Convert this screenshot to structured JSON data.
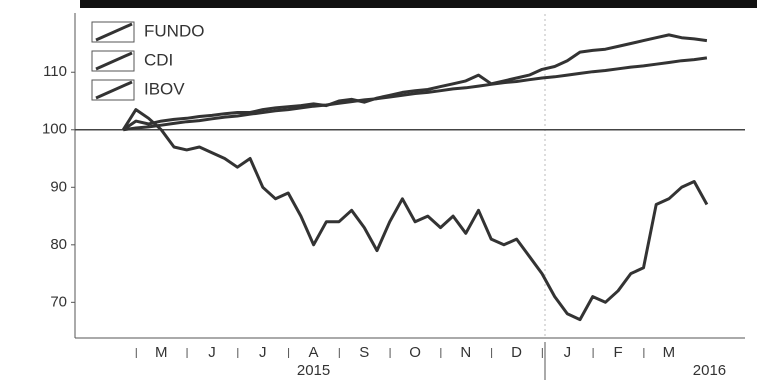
{
  "chart_data": {
    "type": "line",
    "x": [
      4.75,
      5.0,
      5.25,
      5.5,
      5.75,
      6.0,
      6.25,
      6.5,
      6.75,
      7.0,
      7.25,
      7.5,
      7.75,
      8.0,
      8.25,
      8.5,
      8.75,
      9.0,
      9.25,
      9.5,
      9.75,
      10.0,
      10.25,
      10.5,
      10.75,
      11.0,
      11.25,
      11.5,
      11.75,
      12.0,
      12.25,
      12.5,
      12.75,
      13.0,
      13.25,
      13.5,
      13.75,
      14.0,
      14.25,
      14.5,
      14.75,
      15.0,
      15.25,
      15.5,
      15.75,
      16.0,
      16.25
    ],
    "series": [
      {
        "name": "FUNDO",
        "color": "#333333",
        "values": [
          100,
          101.5,
          101,
          101.5,
          101.8,
          102,
          102.3,
          102.5,
          102.8,
          103,
          103,
          103.5,
          103.8,
          104,
          104.2,
          104.5,
          104.2,
          105,
          105.3,
          104.8,
          105.5,
          106,
          106.5,
          106.8,
          107,
          107.5,
          108,
          108.5,
          109.5,
          108,
          108.5,
          109,
          109.5,
          110.5,
          111,
          112,
          113.5,
          113.8,
          114,
          114.5,
          115,
          115.5,
          116,
          116.5,
          116,
          115.8,
          115.5
        ]
      },
      {
        "name": "CDI",
        "color": "#333333",
        "values": [
          100,
          100.3,
          100.5,
          100.8,
          101.1,
          101.4,
          101.6,
          101.9,
          102.2,
          102.4,
          102.7,
          103.0,
          103.3,
          103.5,
          103.8,
          104.1,
          104.3,
          104.6,
          104.9,
          105.2,
          105.4,
          105.7,
          106.0,
          106.3,
          106.5,
          106.8,
          107.1,
          107.3,
          107.6,
          107.9,
          108.2,
          108.4,
          108.7,
          109.0,
          109.2,
          109.5,
          109.8,
          110.1,
          110.3,
          110.6,
          110.9,
          111.1,
          111.4,
          111.7,
          112.0,
          112.2,
          112.5
        ]
      },
      {
        "name": "IBOV",
        "color": "#333333",
        "values": [
          100,
          103.5,
          102,
          100,
          97,
          96.5,
          97,
          96,
          95,
          93.5,
          95,
          90,
          88,
          89,
          85,
          80,
          84,
          84,
          86,
          83,
          79,
          84,
          88,
          84,
          85,
          83,
          85,
          82,
          86,
          81,
          80,
          81,
          78,
          75,
          71,
          68,
          67,
          71,
          70,
          72,
          75,
          76,
          87,
          88,
          90,
          91,
          87
        ]
      }
    ],
    "xlim": [
      3.8,
      17
    ],
    "xticks": [
      {
        "value": 5.5,
        "label": "M"
      },
      {
        "value": 6.5,
        "label": "J"
      },
      {
        "value": 7.5,
        "label": "J"
      },
      {
        "value": 8.5,
        "label": "A"
      },
      {
        "value": 9.5,
        "label": "S"
      },
      {
        "value": 10.5,
        "label": "O"
      },
      {
        "value": 11.5,
        "label": "N"
      },
      {
        "value": 12.5,
        "label": "D"
      },
      {
        "value": 13.5,
        "label": "J"
      },
      {
        "value": 14.5,
        "label": "F"
      },
      {
        "value": 15.5,
        "label": "M"
      }
    ],
    "years": [
      {
        "value": 8.5,
        "label": "2015"
      },
      {
        "value": 16.3,
        "label": "2016"
      }
    ],
    "ylim": [
      63.8,
      120.3
    ],
    "yticks": [
      70,
      80,
      90,
      100,
      110
    ],
    "reference_line": 100,
    "legend": "top-left"
  }
}
